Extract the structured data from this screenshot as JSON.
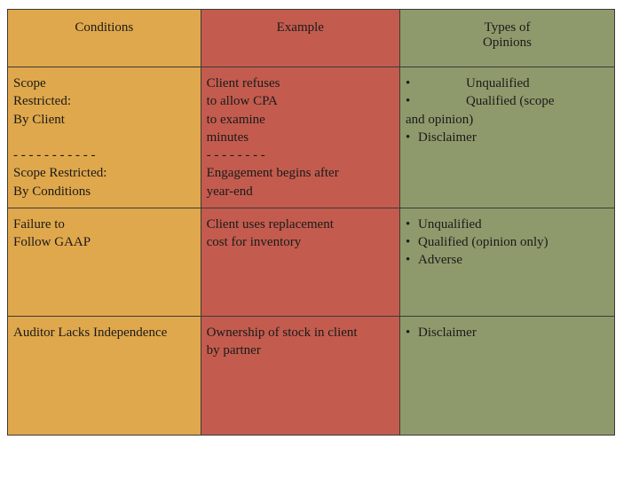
{
  "colors": {
    "col1_bg": "#e0a84c",
    "col2_bg": "#c35c4e",
    "col3_bg": "#8f9a6c",
    "border": "#3a3a3a",
    "text": "#1a1a1a"
  },
  "header": {
    "conditions": "Conditions",
    "example": "Example",
    "opinions_l1": "Types of",
    "opinions_l2": "Opinions"
  },
  "rows": [
    {
      "conditions": {
        "l1": "Scope",
        "l2": "Restricted:",
        "l3": "By Client",
        "l4": "",
        "l5": "- - - - - - - - - - -",
        "l6": "Scope Restricted:",
        "l7": "By Conditions"
      },
      "example": {
        "l1": "Client refuses",
        "l2": "to allow CPA",
        "l3": "to examine",
        "l4": "minutes",
        "l5": "- - - - - - - -",
        "l6": "Engagement begins after",
        "l7": "year-end"
      },
      "opinions": {
        "items": [
          {
            "bullet": "•",
            "gap": true,
            "text": "Unqualified"
          },
          {
            "bullet": "•",
            "gap": true,
            "text": "Qualified (scope"
          }
        ],
        "tail1": "and opinion)",
        "tail2_bullet": "•",
        "tail2_text": "Disclaimer"
      }
    },
    {
      "conditions": {
        "l1": "Failure to",
        "l2": "Follow GAAP"
      },
      "example": {
        "l1": "Client uses replacement",
        "l2": "cost for inventory"
      },
      "opinions": {
        "items": [
          {
            "bullet": "•",
            "gap": false,
            "text": "Unqualified"
          },
          {
            "bullet": "•",
            "gap": false,
            "text": "Qualified   (opinion only)"
          },
          {
            "bullet": "•",
            "gap": false,
            "text": "Adverse"
          }
        ]
      }
    },
    {
      "conditions": {
        "l1": "Auditor Lacks Independence"
      },
      "example": {
        "l1": "Ownership of stock in client",
        "l2": "by partner"
      },
      "opinions": {
        "items": [
          {
            "bullet": "•",
            "gap": false,
            "text": "Disclaimer"
          }
        ]
      }
    }
  ]
}
